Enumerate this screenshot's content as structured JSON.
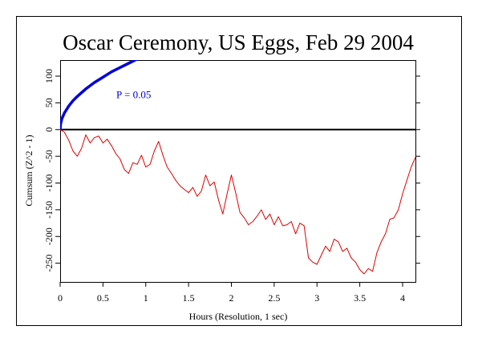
{
  "chart_data": {
    "type": "line",
    "title": "Oscar Ceremony, US Eggs, Feb 29 2004",
    "xlabel": "Hours (Resolution, 1 sec)",
    "ylabel": "Cumsum (Z^2 - 1)",
    "xlim": [
      0,
      4.15
    ],
    "ylim": [
      -285,
      130
    ],
    "x_ticks": [
      {
        "value": 0,
        "label": "0"
      },
      {
        "value": 0.5,
        "label": "0.5"
      },
      {
        "value": 1,
        "label": "1"
      },
      {
        "value": 1.5,
        "label": "1.5"
      },
      {
        "value": 2,
        "label": "2"
      },
      {
        "value": 2.5,
        "label": "2.5"
      },
      {
        "value": 3,
        "label": "3"
      },
      {
        "value": 3.5,
        "label": "3.5"
      },
      {
        "value": 4,
        "label": "4"
      }
    ],
    "y_ticks": [
      {
        "value": 100,
        "label": "100"
      },
      {
        "value": 50,
        "label": "50"
      },
      {
        "value": 0,
        "label": "0"
      },
      {
        "value": -50,
        "label": "-50"
      },
      {
        "value": -100,
        "label": "-100"
      },
      {
        "value": -150,
        "label": "-150"
      },
      {
        "value": -200,
        "label": "-200"
      },
      {
        "value": -250,
        "label": "-250"
      }
    ],
    "series": [
      {
        "color": "#e00000",
        "x": [
          0,
          0.05,
          0.1,
          0.15,
          0.2,
          0.25,
          0.3,
          0.35,
          0.4,
          0.45,
          0.5,
          0.55,
          0.6,
          0.65,
          0.7,
          0.75,
          0.8,
          0.85,
          0.9,
          0.95,
          1.0,
          1.05,
          1.1,
          1.15,
          1.2,
          1.25,
          1.3,
          1.35,
          1.4,
          1.45,
          1.5,
          1.55,
          1.6,
          1.65,
          1.7,
          1.75,
          1.8,
          1.85,
          1.9,
          1.95,
          2.0,
          2.05,
          2.1,
          2.15,
          2.2,
          2.25,
          2.3,
          2.35,
          2.4,
          2.45,
          2.5,
          2.55,
          2.6,
          2.65,
          2.7,
          2.75,
          2.8,
          2.85,
          2.9,
          2.95,
          3.0,
          3.05,
          3.1,
          3.15,
          3.2,
          3.25,
          3.3,
          3.35,
          3.4,
          3.45,
          3.5,
          3.55,
          3.6,
          3.65,
          3.7,
          3.75,
          3.8,
          3.85,
          3.9,
          3.95,
          4.0,
          4.05,
          4.1,
          4.15
        ],
        "y": [
          0,
          -5,
          -20,
          -40,
          -50,
          -35,
          -10,
          -25,
          -15,
          -12,
          -25,
          -18,
          -30,
          -45,
          -55,
          -75,
          -82,
          -62,
          -65,
          -48,
          -70,
          -65,
          -40,
          -22,
          -48,
          -70,
          -82,
          -95,
          -105,
          -112,
          -118,
          -108,
          -125,
          -115,
          -85,
          -105,
          -98,
          -132,
          -158,
          -120,
          -85,
          -118,
          -155,
          -165,
          -178,
          -172,
          -162,
          -150,
          -168,
          -158,
          -178,
          -163,
          -180,
          -178,
          -172,
          -195,
          -175,
          -180,
          -240,
          -248,
          -252,
          -235,
          -218,
          -228,
          -205,
          -210,
          -228,
          -222,
          -240,
          -248,
          -262,
          -270,
          -260,
          -265,
          -230,
          -210,
          -195,
          -168,
          -165,
          -150,
          -120,
          -95,
          -70,
          -52
        ]
      },
      {
        "color": "#0000e0",
        "label": "P = 0.05",
        "x": [
          0,
          0.005,
          0.02,
          0.05,
          0.1,
          0.15,
          0.2,
          0.3,
          0.4,
          0.5,
          0.6,
          0.7,
          0.8,
          0.9
        ],
        "y": [
          0,
          10,
          20,
          31,
          44,
          54,
          62,
          76,
          88,
          98,
          108,
          116,
          124,
          132
        ]
      }
    ],
    "reference_line": {
      "y": 0,
      "color": "#000000"
    },
    "grid": false
  }
}
